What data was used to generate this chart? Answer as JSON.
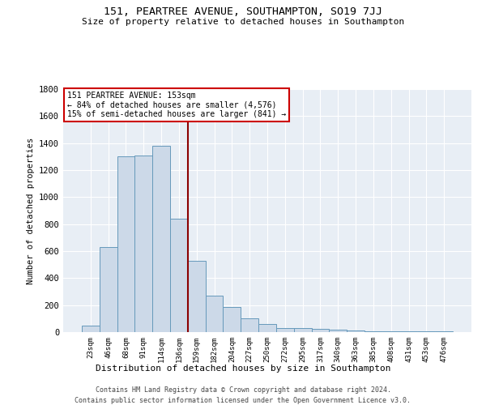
{
  "title1": "151, PEARTREE AVENUE, SOUTHAMPTON, SO19 7JJ",
  "title2": "Size of property relative to detached houses in Southampton",
  "xlabel": "Distribution of detached houses by size in Southampton",
  "ylabel": "Number of detached properties",
  "categories": [
    "23sqm",
    "46sqm",
    "68sqm",
    "91sqm",
    "114sqm",
    "136sqm",
    "159sqm",
    "182sqm",
    "204sqm",
    "227sqm",
    "250sqm",
    "272sqm",
    "295sqm",
    "317sqm",
    "340sqm",
    "363sqm",
    "385sqm",
    "408sqm",
    "431sqm",
    "453sqm",
    "476sqm"
  ],
  "values": [
    50,
    630,
    1305,
    1310,
    1380,
    840,
    530,
    270,
    185,
    100,
    60,
    30,
    30,
    22,
    17,
    12,
    8,
    6,
    6,
    6,
    6
  ],
  "bar_color": "#ccd9e8",
  "bar_edge_color": "#6699bb",
  "vline_x": 5.5,
  "vline_color": "#8b0000",
  "annotation_line1": "151 PEARTREE AVENUE: 153sqm",
  "annotation_line2": "← 84% of detached houses are smaller (4,576)",
  "annotation_line3": "15% of semi-detached houses are larger (841) →",
  "annotation_box_color": "white",
  "annotation_box_edge": "#cc0000",
  "ylim": [
    0,
    1800
  ],
  "yticks": [
    0,
    200,
    400,
    600,
    800,
    1000,
    1200,
    1400,
    1600,
    1800
  ],
  "bg_color": "#e8eef5",
  "grid_color": "#ffffff",
  "footer1": "Contains HM Land Registry data © Crown copyright and database right 2024.",
  "footer2": "Contains public sector information licensed under the Open Government Licence v3.0."
}
